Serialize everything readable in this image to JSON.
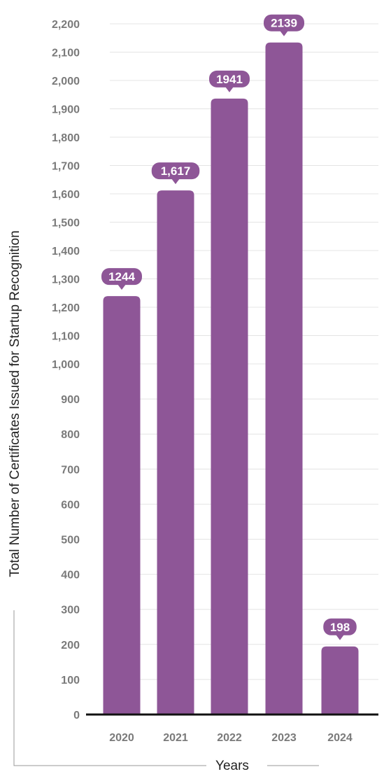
{
  "chart_data": {
    "type": "bar",
    "categories": [
      "2020",
      "2021",
      "2022",
      "2023",
      "2024"
    ],
    "values": [
      1244,
      1617,
      1941,
      2139,
      198
    ],
    "data_labels": [
      "1244",
      "1,617",
      "1941",
      "2139",
      "198"
    ],
    "y_ticks": [
      {
        "value": 0,
        "label": "0"
      },
      {
        "value": 100,
        "label": "100"
      },
      {
        "value": 200,
        "label": "200"
      },
      {
        "value": 300,
        "label": "300"
      },
      {
        "value": 400,
        "label": "400"
      },
      {
        "value": 500,
        "label": "500"
      },
      {
        "value": 600,
        "label": "600"
      },
      {
        "value": 700,
        "label": "700"
      },
      {
        "value": 800,
        "label": "800"
      },
      {
        "value": 900,
        "label": "900"
      },
      {
        "value": 1000,
        "label": "1,000"
      },
      {
        "value": 1100,
        "label": "1,100"
      },
      {
        "value": 1200,
        "label": "1,200"
      },
      {
        "value": 1300,
        "label": "1,300"
      },
      {
        "value": 1400,
        "label": "1,400"
      },
      {
        "value": 1500,
        "label": "1,500"
      },
      {
        "value": 1600,
        "label": "1,600"
      },
      {
        "value": 1700,
        "label": "1,700"
      },
      {
        "value": 1800,
        "label": "1,800"
      },
      {
        "value": 1900,
        "label": "1,900"
      },
      {
        "value": 2000,
        "label": "2,000"
      },
      {
        "value": 2100,
        "label": "2,100"
      },
      {
        "value": 2200,
        "label": "2,200"
      }
    ],
    "xlabel": "Years",
    "ylabel": "Total Number of Certificates Issued for Startup Recognition",
    "ylim": [
      0,
      2200
    ],
    "grid": true,
    "legend": "none",
    "colors": {
      "bar": "#8e5697",
      "label_bg": "#8e5697",
      "gridline": "#e4e4e4",
      "baseline": "#111111",
      "tick_text": "#7a7a7a"
    }
  }
}
